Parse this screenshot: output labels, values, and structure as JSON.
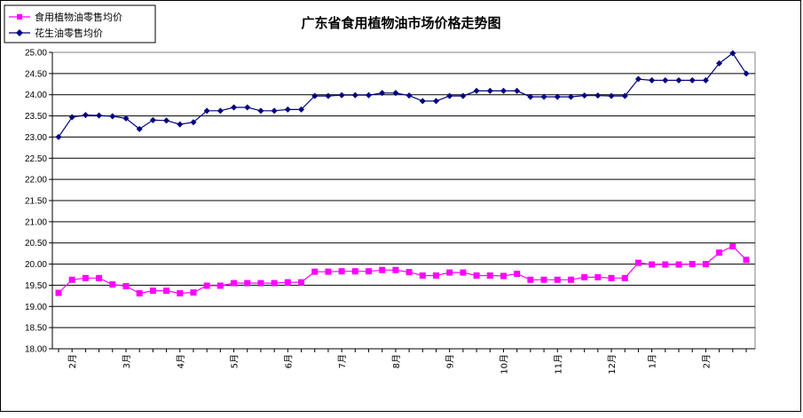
{
  "chart_data": {
    "type": "line",
    "title": "广东省食用植物油市场价格走势图",
    "xlabel": "",
    "ylabel": "",
    "ylim": [
      18.0,
      25.0
    ],
    "yticks": [
      "18.00",
      "18.50",
      "19.00",
      "19.50",
      "20.00",
      "20.50",
      "21.00",
      "21.50",
      "22.00",
      "22.50",
      "23.00",
      "23.50",
      "24.00",
      "24.50",
      "25.00"
    ],
    "grid": "horizontal",
    "legend_position": "top-left",
    "month_labels": [
      {
        "label": "2月",
        "index": 1
      },
      {
        "label": "3月",
        "index": 5
      },
      {
        "label": "4月",
        "index": 9
      },
      {
        "label": "5月",
        "index": 13
      },
      {
        "label": "6月",
        "index": 17
      },
      {
        "label": "7月",
        "index": 21
      },
      {
        "label": "8月",
        "index": 25
      },
      {
        "label": "9月",
        "index": 29
      },
      {
        "label": "10月",
        "index": 33
      },
      {
        "label": "11月",
        "index": 37
      },
      {
        "label": "12月",
        "index": 41
      },
      {
        "label": "1月",
        "index": 44
      },
      {
        "label": "2月",
        "index": 48
      }
    ],
    "series": [
      {
        "name": "食用植物油零售均价",
        "color": "#ff00ff",
        "marker": "square",
        "values": [
          19.32,
          19.63,
          19.67,
          19.67,
          19.52,
          19.48,
          19.31,
          19.37,
          19.37,
          19.31,
          19.33,
          19.49,
          19.49,
          19.55,
          19.55,
          19.55,
          19.55,
          19.57,
          19.57,
          19.82,
          19.82,
          19.83,
          19.83,
          19.83,
          19.86,
          19.86,
          19.81,
          19.73,
          19.73,
          19.8,
          19.8,
          19.73,
          19.73,
          19.72,
          19.77,
          19.63,
          19.63,
          19.63,
          19.63,
          19.69,
          19.69,
          19.67,
          19.67,
          20.03,
          19.99,
          19.99,
          19.99,
          20.0,
          20.0,
          20.27,
          20.42,
          20.1
        ]
      },
      {
        "name": "花生油零售均价",
        "color": "#000080",
        "marker": "diamond",
        "values": [
          23.0,
          23.47,
          23.52,
          23.51,
          23.49,
          23.44,
          23.19,
          23.4,
          23.39,
          23.3,
          23.35,
          23.62,
          23.62,
          23.7,
          23.7,
          23.62,
          23.62,
          23.65,
          23.65,
          23.97,
          23.97,
          23.99,
          23.99,
          23.99,
          24.04,
          24.04,
          23.98,
          23.85,
          23.85,
          23.97,
          23.97,
          24.09,
          24.09,
          24.09,
          24.09,
          23.95,
          23.95,
          23.95,
          23.95,
          23.98,
          23.98,
          23.97,
          23.97,
          24.37,
          24.34,
          24.34,
          24.34,
          24.34,
          24.34,
          24.74,
          24.98,
          24.5
        ]
      }
    ]
  }
}
